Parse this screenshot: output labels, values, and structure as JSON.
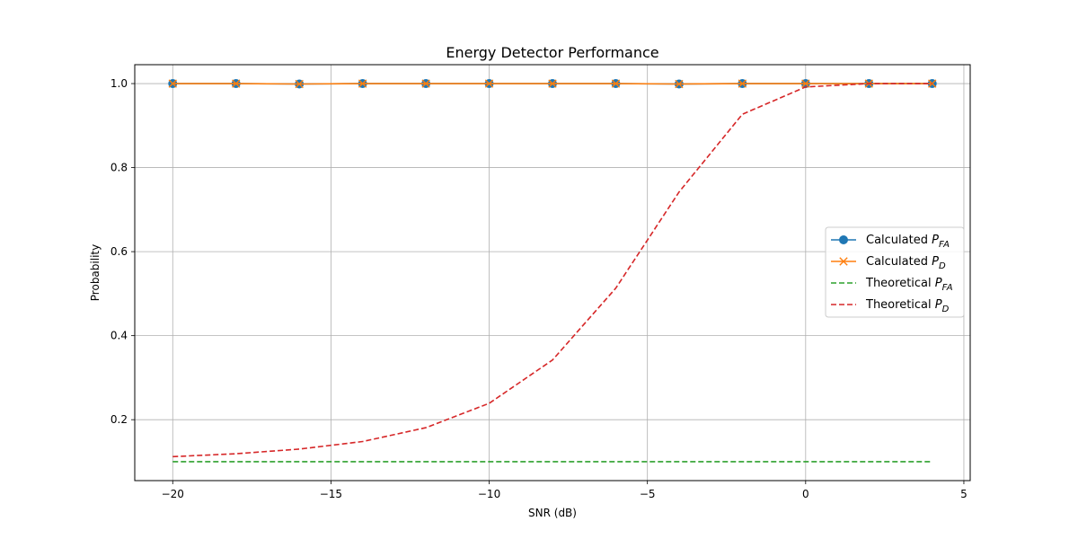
{
  "chart_data": {
    "type": "line",
    "title": "Energy Detector Performance",
    "xlabel": "SNR (dB)",
    "ylabel": "Probability",
    "xlim": [
      -21.2,
      5.2
    ],
    "ylim": [
      0.055,
      1.045
    ],
    "x_ticks": [
      -20,
      -15,
      -10,
      -5,
      0,
      5
    ],
    "x_tick_labels": [
      "−20",
      "−15",
      "−10",
      "−5",
      "0",
      "5"
    ],
    "y_ticks": [
      0.2,
      0.4,
      0.6,
      0.8,
      1.0
    ],
    "y_tick_labels": [
      "0.2",
      "0.4",
      "0.6",
      "0.8",
      "1.0"
    ],
    "grid": true,
    "legend_position": "center-right",
    "x": [
      -20,
      -18,
      -16,
      -14,
      -12,
      -10,
      -8,
      -6,
      -4,
      -2,
      0,
      2,
      4
    ],
    "series": [
      {
        "name_main": "Calculated P",
        "name_sub": "FA",
        "color": "#1f77b4",
        "style": "solid",
        "marker": "circle",
        "values": [
          1.0,
          1.0,
          0.999,
          1.0,
          1.0,
          1.0,
          1.0,
          1.0,
          0.999,
          1.0,
          1.0,
          1.0,
          1.0
        ]
      },
      {
        "name_main": "Calculated P",
        "name_sub": "D",
        "color": "#ff7f0e",
        "style": "solid",
        "marker": "x",
        "values": [
          1.0,
          1.0,
          0.999,
          1.0,
          1.0,
          1.0,
          1.0,
          1.0,
          0.999,
          1.0,
          1.0,
          1.0,
          1.0
        ]
      },
      {
        "name_main": "Theoretical P",
        "name_sub": "FA",
        "color": "#2ca02c",
        "style": "dashed",
        "marker": "none",
        "values": [
          0.1,
          0.1,
          0.1,
          0.1,
          0.1,
          0.1,
          0.1,
          0.1,
          0.1,
          0.1,
          0.1,
          0.1,
          0.1
        ]
      },
      {
        "name_main": "Theoretical P",
        "name_sub": "D",
        "color": "#d62728",
        "style": "dashed",
        "marker": "none",
        "values": [
          0.112,
          0.119,
          0.13,
          0.148,
          0.181,
          0.239,
          0.342,
          0.513,
          0.742,
          0.927,
          0.992,
          1.0,
          1.0
        ]
      }
    ]
  }
}
